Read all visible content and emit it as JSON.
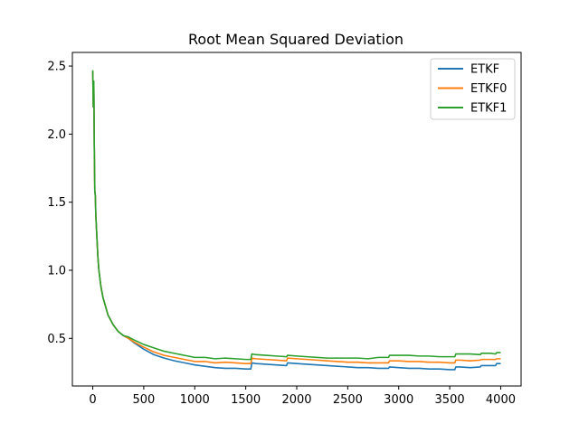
{
  "chart_data": {
    "type": "line",
    "title": "Root Mean Squared Deviation",
    "xlabel": "",
    "ylabel": "",
    "xlim": [
      -200,
      4200
    ],
    "ylim": [
      0.15,
      2.6
    ],
    "xticks": [
      0,
      500,
      1000,
      1500,
      2000,
      2500,
      3000,
      3500,
      4000
    ],
    "yticks": [
      0.5,
      1.0,
      1.5,
      2.0,
      2.5
    ],
    "ytick_labels": [
      "0.5",
      "1.0",
      "1.5",
      "2.0",
      "2.5"
    ],
    "grid": false,
    "legend": "top-right",
    "series": [
      {
        "name": "ETKF",
        "color": "#1f77b4",
        "x": [
          0,
          5,
          10,
          15,
          20,
          25,
          30,
          40,
          50,
          60,
          80,
          100,
          150,
          200,
          250,
          300,
          350,
          400,
          500,
          600,
          700,
          800,
          900,
          1000,
          1100,
          1200,
          1300,
          1400,
          1500,
          1550,
          1560,
          1600,
          1700,
          1800,
          1900,
          1910,
          2000,
          2100,
          2200,
          2300,
          2400,
          2500,
          2600,
          2700,
          2800,
          2900,
          2910,
          3000,
          3100,
          3200,
          3300,
          3400,
          3500,
          3550,
          3560,
          3600,
          3700,
          3800,
          3810,
          3900,
          3950,
          3960,
          4000
        ],
        "y": [
          2.46,
          2.2,
          2.38,
          1.9,
          1.58,
          1.55,
          1.4,
          1.25,
          1.1,
          1.0,
          0.88,
          0.8,
          0.67,
          0.6,
          0.55,
          0.52,
          0.5,
          0.47,
          0.42,
          0.38,
          0.355,
          0.335,
          0.32,
          0.305,
          0.295,
          0.285,
          0.28,
          0.28,
          0.275,
          0.275,
          0.32,
          0.315,
          0.31,
          0.305,
          0.3,
          0.32,
          0.315,
          0.31,
          0.305,
          0.3,
          0.295,
          0.29,
          0.285,
          0.285,
          0.28,
          0.28,
          0.29,
          0.285,
          0.28,
          0.28,
          0.275,
          0.275,
          0.27,
          0.27,
          0.29,
          0.29,
          0.285,
          0.29,
          0.3,
          0.3,
          0.3,
          0.315,
          0.315
        ]
      },
      {
        "name": "ETKF0",
        "color": "#ff7f0e",
        "x": [
          0,
          5,
          10,
          15,
          20,
          25,
          30,
          40,
          50,
          60,
          80,
          100,
          150,
          200,
          250,
          300,
          350,
          400,
          500,
          600,
          700,
          800,
          900,
          1000,
          1100,
          1200,
          1300,
          1400,
          1500,
          1550,
          1560,
          1600,
          1700,
          1800,
          1900,
          1910,
          2000,
          2100,
          2200,
          2300,
          2400,
          2500,
          2600,
          2700,
          2800,
          2900,
          2910,
          3000,
          3100,
          3200,
          3300,
          3400,
          3500,
          3550,
          3560,
          3600,
          3700,
          3800,
          3810,
          3900,
          3950,
          3960,
          4000
        ],
        "y": [
          2.46,
          2.2,
          2.38,
          1.9,
          1.58,
          1.55,
          1.4,
          1.25,
          1.1,
          1.0,
          0.88,
          0.8,
          0.67,
          0.6,
          0.55,
          0.52,
          0.5,
          0.475,
          0.435,
          0.4,
          0.375,
          0.36,
          0.345,
          0.33,
          0.33,
          0.32,
          0.325,
          0.32,
          0.315,
          0.315,
          0.355,
          0.35,
          0.345,
          0.34,
          0.335,
          0.355,
          0.35,
          0.345,
          0.34,
          0.335,
          0.33,
          0.325,
          0.325,
          0.32,
          0.32,
          0.32,
          0.335,
          0.335,
          0.33,
          0.33,
          0.325,
          0.325,
          0.32,
          0.32,
          0.34,
          0.34,
          0.335,
          0.34,
          0.345,
          0.345,
          0.345,
          0.35,
          0.35
        ]
      },
      {
        "name": "ETKF1",
        "color": "#2ca02c",
        "x": [
          0,
          5,
          10,
          15,
          20,
          25,
          30,
          40,
          50,
          60,
          80,
          100,
          150,
          200,
          250,
          300,
          350,
          400,
          500,
          600,
          700,
          800,
          900,
          1000,
          1100,
          1200,
          1300,
          1400,
          1500,
          1550,
          1560,
          1600,
          1700,
          1800,
          1900,
          1910,
          2000,
          2100,
          2200,
          2300,
          2400,
          2500,
          2600,
          2700,
          2800,
          2900,
          2910,
          3000,
          3100,
          3200,
          3300,
          3400,
          3500,
          3550,
          3560,
          3600,
          3700,
          3800,
          3810,
          3900,
          3950,
          3960,
          4000
        ],
        "y": [
          2.47,
          2.2,
          2.39,
          1.9,
          1.58,
          1.55,
          1.4,
          1.25,
          1.1,
          1.0,
          0.88,
          0.8,
          0.67,
          0.6,
          0.55,
          0.52,
          0.51,
          0.49,
          0.455,
          0.43,
          0.405,
          0.39,
          0.375,
          0.36,
          0.36,
          0.35,
          0.355,
          0.35,
          0.345,
          0.345,
          0.385,
          0.38,
          0.375,
          0.37,
          0.365,
          0.375,
          0.37,
          0.365,
          0.36,
          0.355,
          0.355,
          0.355,
          0.355,
          0.35,
          0.36,
          0.36,
          0.375,
          0.375,
          0.375,
          0.37,
          0.37,
          0.365,
          0.365,
          0.365,
          0.385,
          0.385,
          0.385,
          0.38,
          0.39,
          0.39,
          0.385,
          0.395,
          0.395
        ]
      }
    ]
  }
}
